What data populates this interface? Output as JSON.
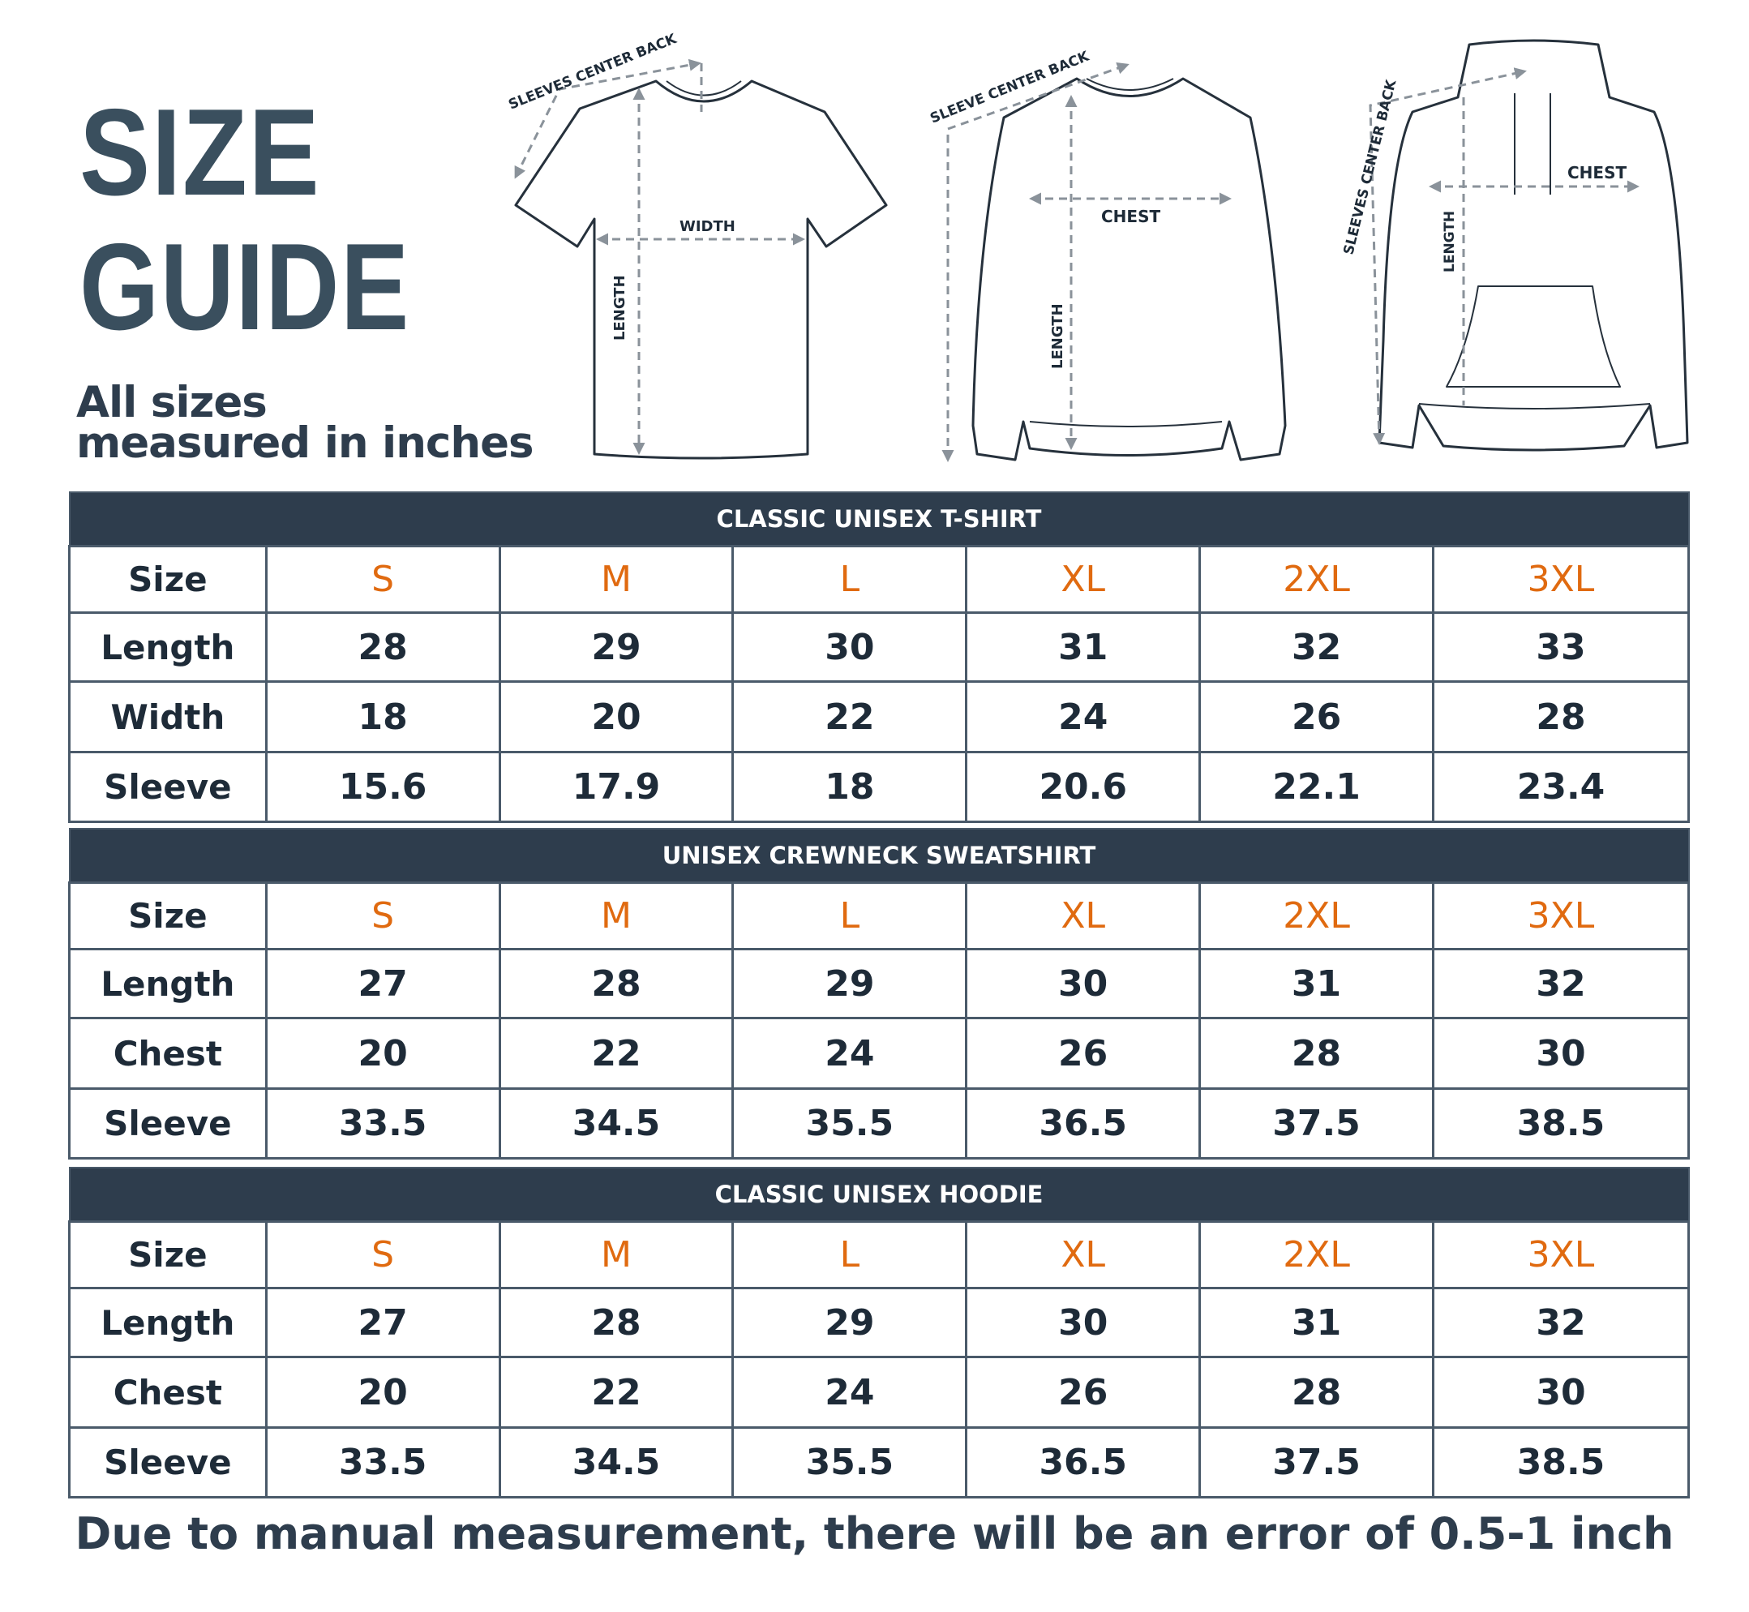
{
  "header": {
    "title_line1": "SIZE",
    "title_line2": "GUIDE",
    "subtitle_line1": "All sizes",
    "subtitle_line2": "measured in inches"
  },
  "diagrams": {
    "tshirt": {
      "sleeve": "SLEEVES CENTER BACK",
      "width": "WIDTH",
      "length": "LENGTH"
    },
    "sweatshirt": {
      "sleeve": "SLEEVE CENTER BACK",
      "chest": "CHEST",
      "length": "LENGTH"
    },
    "hoodie": {
      "sleeve": "SLEEVES CENTER BACK",
      "chest": "CHEST",
      "length": "LENGTH"
    }
  },
  "colors": {
    "header_bg": "#2e3d4d",
    "title": "#3a4f5e",
    "size_accent": "#e06a10",
    "text": "#1e2b38"
  },
  "tables": [
    {
      "title": "CLASSIC UNISEX T-SHIRT",
      "size_label": "Size",
      "sizes": [
        "S",
        "M",
        "L",
        "XL",
        "2XL",
        "3XL"
      ],
      "rows": [
        {
          "label": "Length",
          "values": [
            "28",
            "29",
            "30",
            "31",
            "32",
            "33"
          ]
        },
        {
          "label": "Width",
          "values": [
            "18",
            "20",
            "22",
            "24",
            "26",
            "28"
          ]
        },
        {
          "label": "Sleeve",
          "values": [
            "15.6",
            "17.9",
            "18",
            "20.6",
            "22.1",
            "23.4"
          ]
        }
      ]
    },
    {
      "title": "UNISEX CREWNECK SWEATSHIRT",
      "size_label": "Size",
      "sizes": [
        "S",
        "M",
        "L",
        "XL",
        "2XL",
        "3XL"
      ],
      "rows": [
        {
          "label": "Length",
          "values": [
            "27",
            "28",
            "29",
            "30",
            "31",
            "32"
          ]
        },
        {
          "label": "Chest",
          "values": [
            "20",
            "22",
            "24",
            "26",
            "28",
            "30"
          ]
        },
        {
          "label": "Sleeve",
          "values": [
            "33.5",
            "34.5",
            "35.5",
            "36.5",
            "37.5",
            "38.5"
          ]
        }
      ]
    },
    {
      "title": "CLASSIC UNISEX HOODIE",
      "size_label": "Size",
      "sizes": [
        "S",
        "M",
        "L",
        "XL",
        "2XL",
        "3XL"
      ],
      "rows": [
        {
          "label": "Length",
          "values": [
            "27",
            "28",
            "29",
            "30",
            "31",
            "32"
          ]
        },
        {
          "label": "Chest",
          "values": [
            "20",
            "22",
            "24",
            "26",
            "28",
            "30"
          ]
        },
        {
          "label": "Sleeve",
          "values": [
            "33.5",
            "34.5",
            "35.5",
            "36.5",
            "37.5",
            "38.5"
          ]
        }
      ]
    }
  ],
  "footer": "Due to manual measurement, there will be an error of 0.5-1  inch"
}
